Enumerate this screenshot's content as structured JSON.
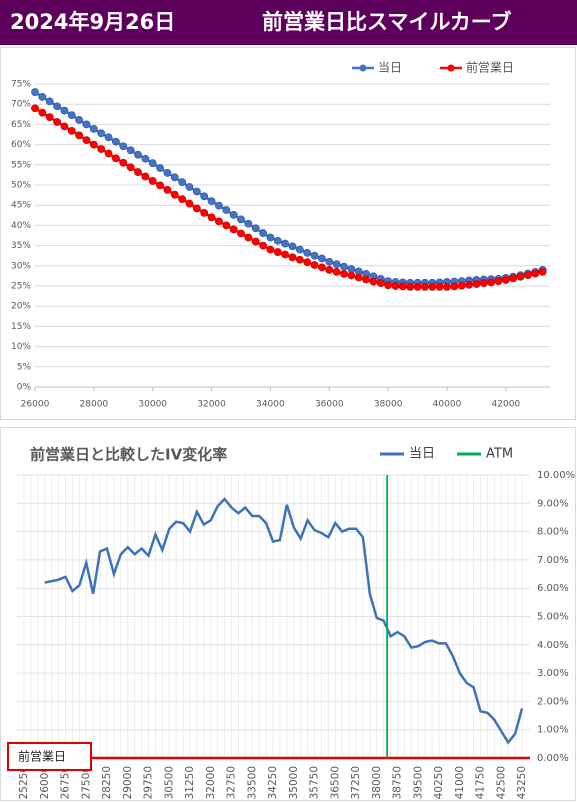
{
  "header": {
    "date": "2024年9月26日",
    "title": "前営業日比スマイルカーブ"
  },
  "chart_data": [
    {
      "type": "line",
      "markers": true,
      "legend": "top-right",
      "grid": true,
      "x": [
        26000,
        26250,
        26500,
        26750,
        27000,
        27250,
        27500,
        27750,
        28000,
        28250,
        28500,
        28750,
        29000,
        29250,
        29500,
        29750,
        30000,
        30250,
        30500,
        30750,
        31000,
        31250,
        31500,
        31750,
        32000,
        32250,
        32500,
        32750,
        33000,
        33250,
        33500,
        33750,
        34000,
        34250,
        34500,
        34750,
        35000,
        35250,
        35500,
        35750,
        36000,
        36250,
        36500,
        36750,
        37000,
        37250,
        37500,
        37750,
        38000,
        38250,
        38500,
        38750,
        39000,
        39250,
        39500,
        39750,
        40000,
        40250,
        40500,
        40750,
        41000,
        41250,
        41500,
        41750,
        42000,
        42250,
        42500,
        42750,
        43000,
        43250
      ],
      "series": [
        {
          "name": "当日",
          "color": "#4472c4",
          "values": [
            73,
            71.8,
            70.7,
            69.5,
            68.4,
            67.3,
            66.1,
            65.0,
            63.9,
            62.8,
            61.8,
            60.7,
            59.6,
            58.6,
            57.5,
            56.5,
            55.4,
            54.2,
            53.0,
            51.9,
            50.7,
            49.5,
            48.4,
            47.2,
            46.0,
            44.9,
            43.8,
            42.6,
            41.5,
            40.4,
            39.3,
            38.1,
            37.0,
            36.2,
            35.5,
            34.8,
            34.0,
            33.2,
            32.5,
            31.8,
            31.0,
            30.4,
            29.8,
            29.2,
            28.6,
            28.0,
            27.4,
            26.8,
            26.2,
            26.0,
            25.9,
            25.8,
            25.8,
            25.8,
            25.8,
            25.9,
            26.0,
            26.1,
            26.2,
            26.4,
            26.5,
            26.6,
            26.7,
            26.8,
            27.0,
            27.3,
            27.7,
            28.1,
            28.5,
            29.0
          ]
        },
        {
          "name": "前営業日",
          "color": "#ff0000",
          "values": [
            69.0,
            67.9,
            66.8,
            65.6,
            64.5,
            63.4,
            62.3,
            61.1,
            60.0,
            58.9,
            57.8,
            56.6,
            55.5,
            54.4,
            53.2,
            52.1,
            51.0,
            49.9,
            48.8,
            47.6,
            46.5,
            45.4,
            44.2,
            43.1,
            42.0,
            41.0,
            40.0,
            39.0,
            38.0,
            37.0,
            36.0,
            35.0,
            34.0,
            33.4,
            32.8,
            32.1,
            31.5,
            30.9,
            30.2,
            29.6,
            29.0,
            28.5,
            28.0,
            27.6,
            27.1,
            26.6,
            26.1,
            25.7,
            25.2,
            25.0,
            24.9,
            24.8,
            24.8,
            24.8,
            24.8,
            24.8,
            24.8,
            24.9,
            25.1,
            25.3,
            25.5,
            25.7,
            25.9,
            26.2,
            26.5,
            26.9,
            27.3,
            27.7,
            28.1,
            28.5
          ]
        }
      ],
      "xlim": [
        26000,
        43500
      ],
      "xticks": [
        26000,
        28000,
        30000,
        32000,
        34000,
        36000,
        38000,
        40000,
        42000
      ],
      "ylim": [
        0,
        75
      ],
      "yticks": [
        {
          "value": 0,
          "label": "0%"
        },
        {
          "value": 5,
          "label": "5%"
        },
        {
          "value": 10,
          "label": "10%"
        },
        {
          "value": 15,
          "label": "15%"
        },
        {
          "value": 20,
          "label": "20%"
        },
        {
          "value": 25,
          "label": "25%"
        },
        {
          "value": 30,
          "label": "30%"
        },
        {
          "value": 35,
          "label": "35%"
        },
        {
          "value": 40,
          "label": "40%"
        },
        {
          "value": 45,
          "label": "45%"
        },
        {
          "value": 50,
          "label": "50%"
        },
        {
          "value": 55,
          "label": "55%"
        },
        {
          "value": 60,
          "label": "60%"
        },
        {
          "value": 65,
          "label": "65%"
        },
        {
          "value": 70,
          "label": "70%"
        },
        {
          "value": 75,
          "label": "75%"
        }
      ]
    },
    {
      "type": "line",
      "title": "前営業日と比較したIV変化率",
      "legend": "top-right",
      "grid": true,
      "y_axis_side": "right",
      "categories": [
        25250,
        null,
        null,
        26000,
        null,
        null,
        26750,
        null,
        null,
        27500,
        null,
        null,
        28250,
        null,
        null,
        29000,
        null,
        null,
        29750,
        null,
        null,
        30500,
        null,
        null,
        31250,
        null,
        null,
        32000,
        null,
        null,
        32750,
        null,
        null,
        33500,
        null,
        null,
        34250,
        null,
        null,
        35000,
        null,
        null,
        35750,
        null,
        null,
        36500,
        null,
        null,
        37250,
        null,
        null,
        38000,
        null,
        null,
        38750,
        null,
        null,
        39500,
        null,
        null,
        40250,
        null,
        null,
        41000,
        null,
        null,
        41750,
        null,
        null,
        42500,
        null,
        null,
        43250
      ],
      "series": [
        {
          "name": "当日",
          "color": "#3f72b8",
          "values": [
            null,
            null,
            null,
            6.2,
            6.25,
            6.3,
            6.4,
            5.9,
            6.1,
            6.9,
            5.8,
            7.3,
            7.4,
            6.5,
            7.2,
            7.45,
            7.2,
            7.4,
            7.15,
            7.9,
            7.35,
            8.1,
            8.35,
            8.3,
            8.0,
            8.7,
            8.25,
            8.4,
            8.9,
            9.15,
            8.85,
            8.65,
            8.85,
            8.55,
            8.55,
            8.3,
            7.65,
            7.7,
            8.95,
            8.15,
            7.75,
            8.4,
            8.05,
            7.95,
            7.8,
            8.3,
            8.0,
            8.1,
            8.1,
            7.8,
            5.8,
            4.95,
            4.85,
            4.3,
            4.45,
            4.3,
            3.9,
            3.95,
            4.1,
            4.15,
            4.05,
            4.05,
            3.6,
            3.0,
            2.65,
            2.5,
            1.65,
            1.6,
            1.35,
            0.95,
            0.55,
            0.85,
            1.75
          ]
        },
        {
          "name": "前営業日",
          "color": "#e00000",
          "values": [
            0,
            0,
            0,
            0,
            0,
            0,
            0,
            0,
            0,
            0,
            0,
            0,
            0,
            0,
            0,
            0,
            0,
            0,
            0,
            0,
            0,
            0,
            0,
            0,
            0,
            0,
            0,
            0,
            0,
            0,
            0,
            0,
            0,
            0,
            0,
            0,
            0,
            0,
            0,
            0,
            0,
            0,
            0,
            0,
            0,
            0,
            0,
            0,
            0,
            0,
            0,
            0,
            0,
            0,
            0,
            0,
            0,
            0,
            0,
            0,
            0,
            0,
            0,
            0,
            0,
            0,
            0,
            0,
            0,
            0,
            0,
            0,
            0
          ]
        }
      ],
      "vlines": [
        {
          "name": "ATM",
          "color": "#00b050",
          "x": 38375
        }
      ],
      "ylim": [
        0,
        10
      ],
      "yticks": [
        {
          "value": 0,
          "label": "0.00%"
        },
        {
          "value": 1,
          "label": "1.00%"
        },
        {
          "value": 2,
          "label": "2.00%"
        },
        {
          "value": 3,
          "label": "3.00%"
        },
        {
          "value": 4,
          "label": "4.00%"
        },
        {
          "value": 5,
          "label": "5.00%"
        },
        {
          "value": 6,
          "label": "6.00%"
        },
        {
          "value": 7,
          "label": "7.00%"
        },
        {
          "value": 8,
          "label": "8.00%"
        },
        {
          "value": 9,
          "label": "9.00%"
        },
        {
          "value": 10,
          "label": "10.00%"
        }
      ]
    }
  ]
}
